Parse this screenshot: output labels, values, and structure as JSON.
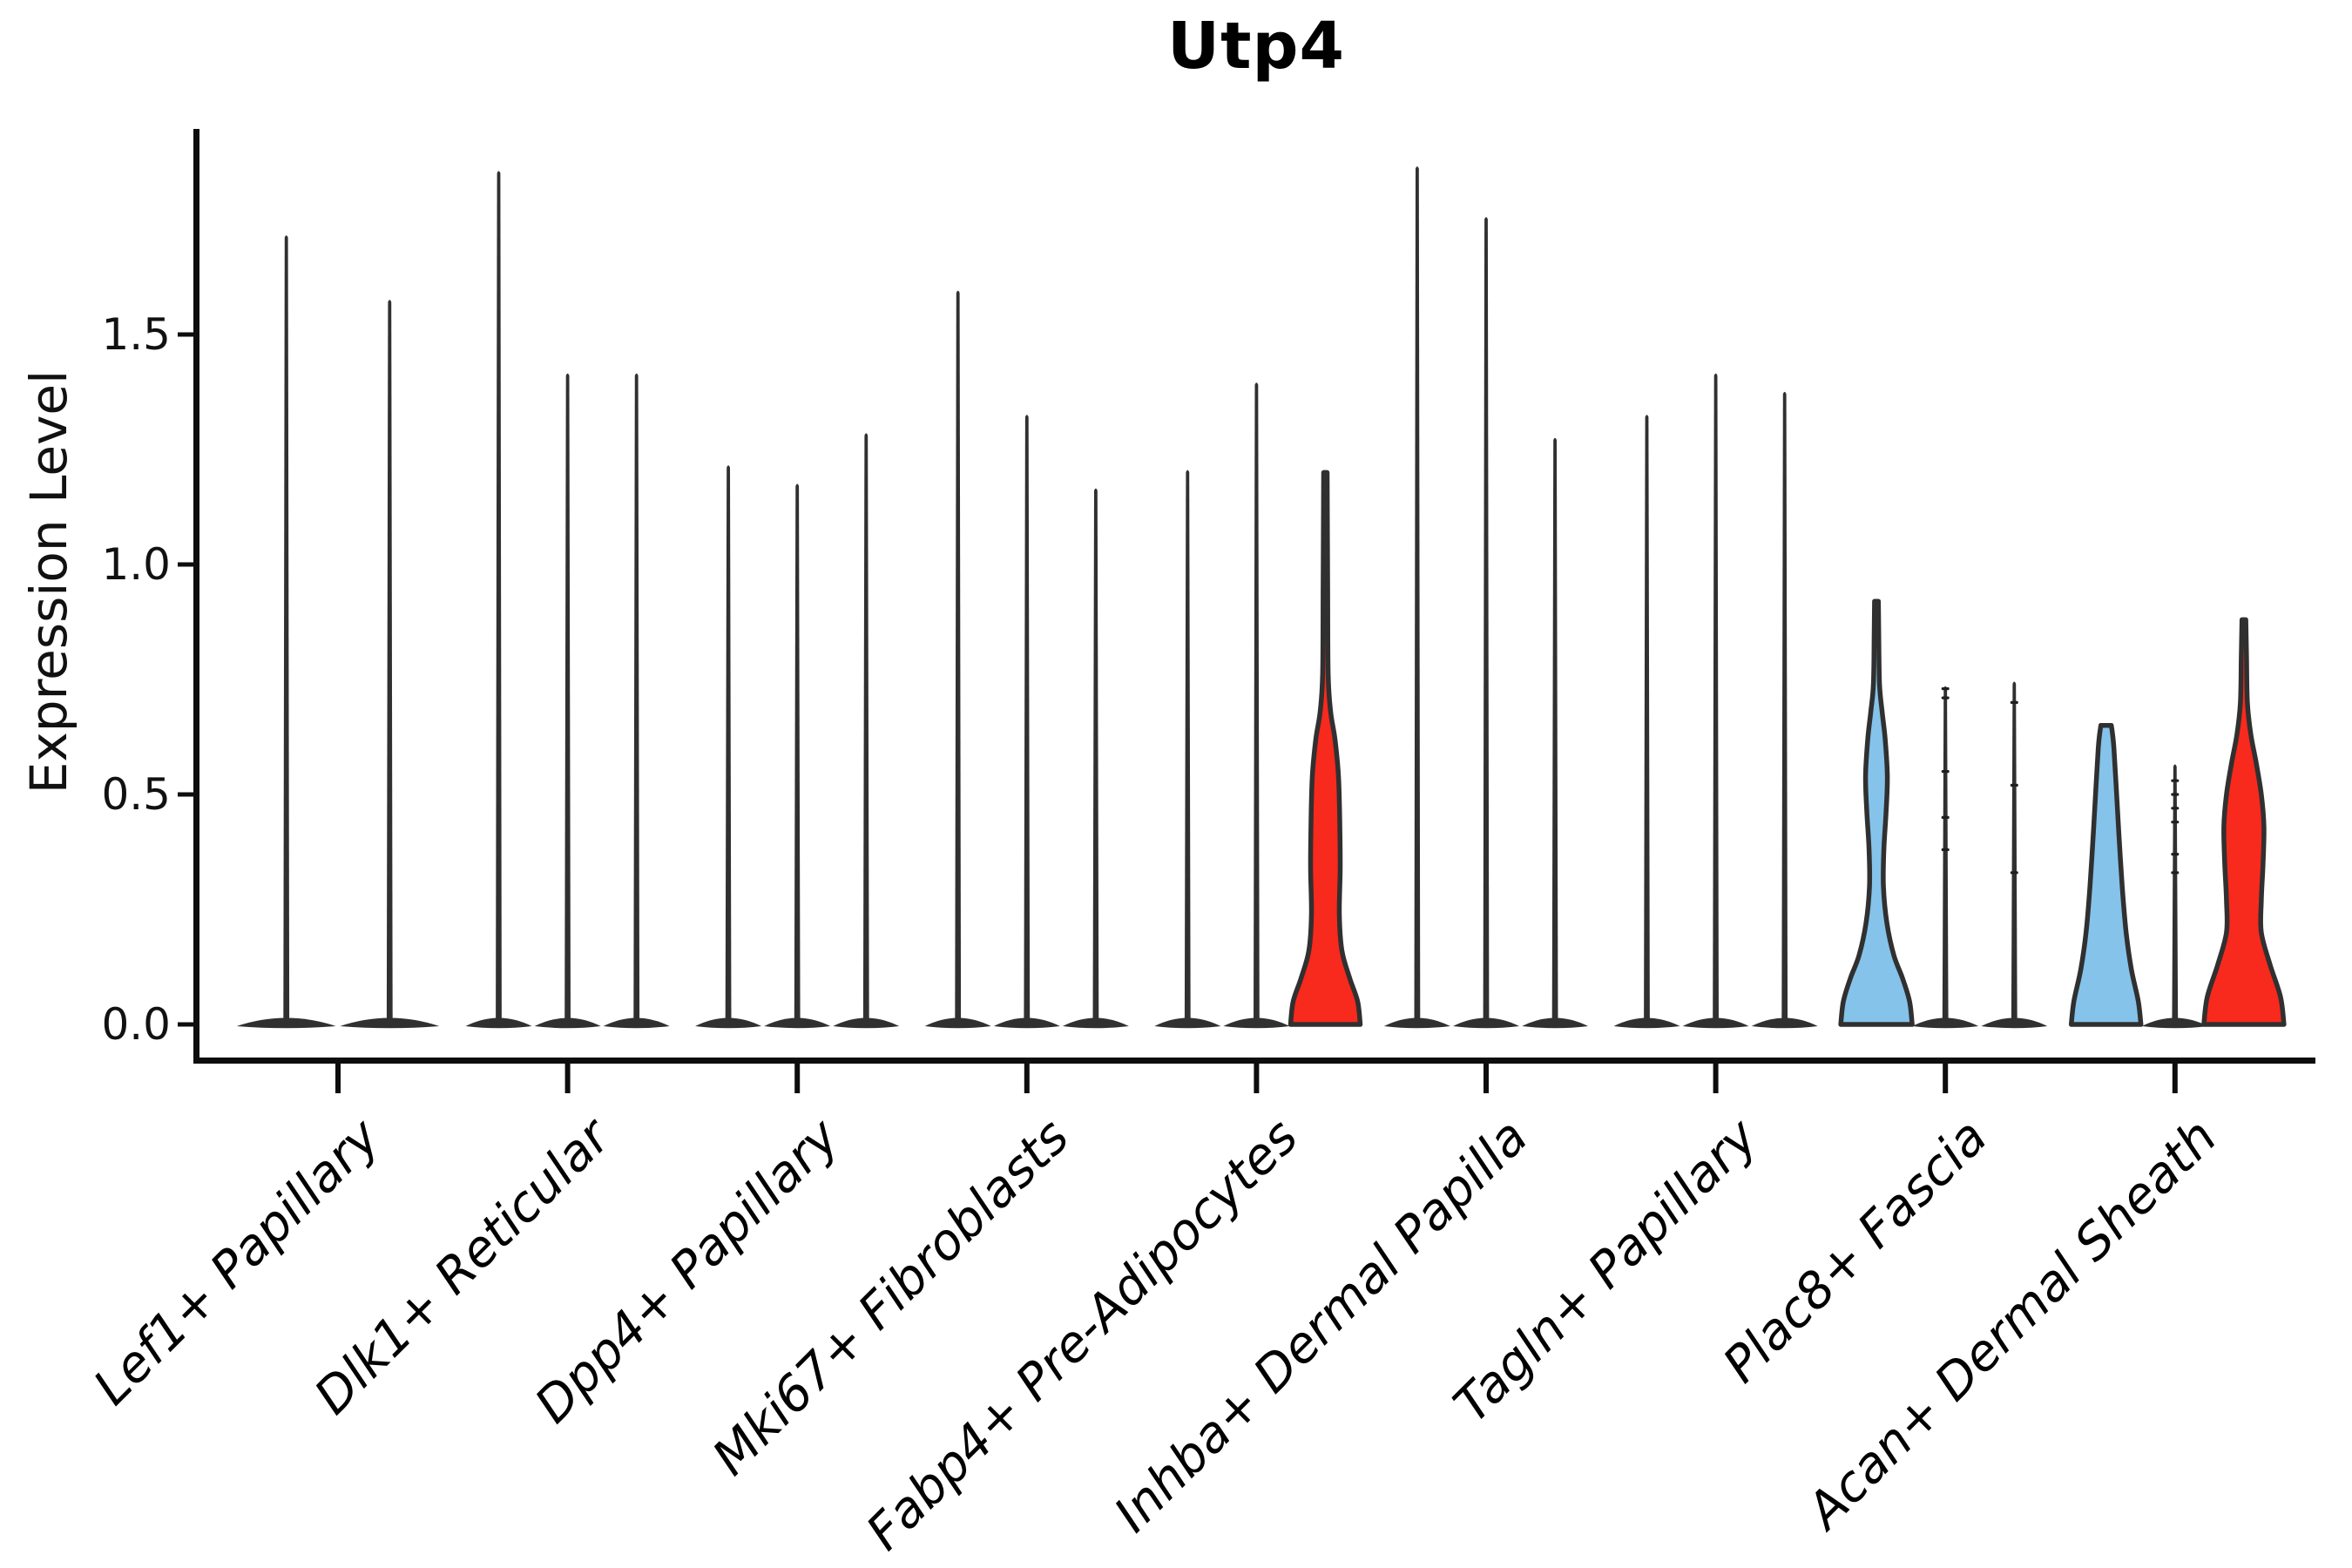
{
  "chart_data": {
    "type": "violin",
    "title": "Utp4",
    "ylabel": "Expression Level",
    "xlabel": "",
    "ylim": [
      0,
      1.95
    ],
    "yticks": [
      0.0,
      0.5,
      1.0,
      1.5
    ],
    "ytick_labels": [
      "0.0",
      "0.5",
      "1.0",
      "1.5"
    ],
    "grid": false,
    "legend": "none",
    "groups": [
      {
        "label": "Lef1+ Papillary",
        "violins": [
          {
            "kind": "spike",
            "max": 1.72
          },
          {
            "kind": "spike",
            "max": 1.58
          }
        ]
      },
      {
        "label": "Dlk1+ Reticular",
        "violins": [
          {
            "kind": "spike",
            "max": 1.86
          },
          {
            "kind": "spike",
            "max": 1.42
          },
          {
            "kind": "spike",
            "max": 1.42
          }
        ]
      },
      {
        "label": "Dpp4+ Papillary",
        "violins": [
          {
            "kind": "spike",
            "max": 1.22
          },
          {
            "kind": "spike",
            "max": 1.18
          },
          {
            "kind": "spike",
            "max": 1.29
          }
        ]
      },
      {
        "label": "Mki67+ Fibroblasts",
        "violins": [
          {
            "kind": "spike",
            "max": 1.6
          },
          {
            "kind": "spike",
            "max": 1.33
          },
          {
            "kind": "spike",
            "max": 1.17
          }
        ]
      },
      {
        "label": "Fabp4+ Pre-Adipocytes",
        "violins": [
          {
            "kind": "spike",
            "max": 1.21
          },
          {
            "kind": "spike",
            "max": 1.4
          },
          {
            "kind": "shaped",
            "max": 1.2,
            "fill": "#F8291D",
            "profile": [
              [
                0,
                40
              ],
              [
                0.05,
                37
              ],
              [
                0.1,
                28
              ],
              [
                0.16,
                19
              ],
              [
                0.24,
                16
              ],
              [
                0.34,
                17
              ],
              [
                0.44,
                16.5
              ],
              [
                0.54,
                15
              ],
              [
                0.62,
                11
              ],
              [
                0.68,
                6
              ],
              [
                0.76,
                3.2
              ],
              [
                0.95,
                2.6
              ],
              [
                1.2,
                2.0
              ]
            ]
          }
        ]
      },
      {
        "label": "Inhba+ Dermal Papilla",
        "violins": [
          {
            "kind": "spike",
            "max": 1.87
          },
          {
            "kind": "spike",
            "max": 1.76
          },
          {
            "kind": "spike",
            "max": 1.28
          }
        ]
      },
      {
        "label": "Tagln+ Papillary",
        "violins": [
          {
            "kind": "spike",
            "max": 1.33
          },
          {
            "kind": "spike",
            "max": 1.42
          },
          {
            "kind": "spike",
            "max": 1.38
          }
        ]
      },
      {
        "label": "Plac8+ Fascia",
        "violins": [
          {
            "kind": "shaped",
            "max": 0.92,
            "fill": "#85C3EA",
            "profile": [
              [
                0,
                41
              ],
              [
                0.05,
                38
              ],
              [
                0.1,
                30
              ],
              [
                0.15,
                20
              ],
              [
                0.22,
                12
              ],
              [
                0.3,
                8
              ],
              [
                0.38,
                8.5
              ],
              [
                0.46,
                11
              ],
              [
                0.54,
                12.5
              ],
              [
                0.62,
                10
              ],
              [
                0.68,
                6.5
              ],
              [
                0.74,
                3.5
              ],
              [
                0.85,
                2.6
              ],
              [
                0.92,
                2.2
              ]
            ]
          },
          {
            "kind": "spike",
            "max": 0.74,
            "dots": [
              0.73,
              0.71,
              0.55,
              0.45,
              0.38
            ]
          },
          {
            "kind": "spike",
            "max": 0.75,
            "dots": [
              0.7,
              0.52,
              0.33
            ]
          }
        ]
      },
      {
        "label": "Acan+ Dermal Sheath",
        "violins": [
          {
            "kind": "shaped",
            "max": 0.65,
            "fill": "#85C3EA",
            "profile": [
              [
                0,
                40
              ],
              [
                0.05,
                37
              ],
              [
                0.12,
                29
              ],
              [
                0.2,
                23
              ],
              [
                0.3,
                18.5
              ],
              [
                0.42,
                14.5
              ],
              [
                0.52,
                11.5
              ],
              [
                0.6,
                9
              ],
              [
                0.63,
                7.5
              ],
              [
                0.65,
                6
              ]
            ]
          },
          {
            "kind": "spike",
            "max": 0.57,
            "dots": [
              0.53,
              0.5,
              0.47,
              0.44,
              0.37,
              0.33
            ]
          },
          {
            "kind": "shaped",
            "max": 0.88,
            "fill": "#F8291D",
            "profile": [
              [
                0,
                46
              ],
              [
                0.06,
                42
              ],
              [
                0.13,
                30
              ],
              [
                0.2,
                20
              ],
              [
                0.27,
                20
              ],
              [
                0.35,
                22
              ],
              [
                0.43,
                23
              ],
              [
                0.5,
                20
              ],
              [
                0.57,
                14
              ],
              [
                0.63,
                8
              ],
              [
                0.7,
                4
              ],
              [
                0.8,
                3
              ],
              [
                0.88,
                2.2
              ]
            ]
          }
        ]
      }
    ]
  },
  "colors": {
    "background": "#ffffff",
    "violin_blue": "#85C3EA",
    "violin_red": "#F8291D",
    "violin_outline": "#303030",
    "spike": "#303030",
    "point_dash": "#1f1f1f",
    "axis": "#0d0d0d",
    "text": "#000000"
  }
}
